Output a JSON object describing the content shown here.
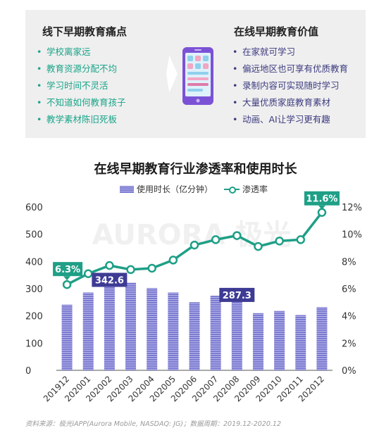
{
  "left_panel": {
    "title": "线下早期教育痛点",
    "items": [
      "学校离家远",
      "教育资源分配不均",
      "学习时间不灵活",
      "不知道如何教育孩子",
      "教学素材陈旧死板"
    ]
  },
  "right_panel": {
    "title": "在线早期教育价值",
    "items": [
      "在家就可学习",
      "偏远地区也可享有优质教育",
      "录制内容可实现随时学习",
      "大量优质家庭教育素材",
      "动画、AI让学习更有趣"
    ]
  },
  "bullet_symbol": "•",
  "watermark": "AURORA 极光",
  "source": "资料来源：极光iAPP(Aurora Mobile, NASDAQ: JG)；数据周期：2019.12-2020.12",
  "colors": {
    "bar": "#7b7ad0",
    "line": "#1e9f86",
    "callout_teal": "#1e9f86",
    "callout_purple": "#3e3b95"
  },
  "chart_data": {
    "type": "bar",
    "title": "在线早期教育行业渗透率和使用时长",
    "categories": [
      "201912",
      "202001",
      "202002",
      "202003",
      "202004",
      "202005",
      "202006",
      "202007",
      "202008",
      "202009",
      "202010",
      "202011",
      "202012"
    ],
    "series": [
      {
        "name": "使用时长（亿分钟）",
        "type": "bar",
        "axis": "left",
        "values": [
          241,
          286,
          342.6,
          322,
          302,
          286,
          250,
          274,
          287.3,
          210,
          218,
          203,
          232
        ]
      },
      {
        "name": "渗透率",
        "type": "line",
        "axis": "right",
        "values": [
          6.3,
          7.1,
          7.7,
          7.4,
          7.5,
          8.1,
          9.2,
          9.6,
          9.9,
          9.1,
          9.5,
          9.6,
          11.6
        ]
      }
    ],
    "ylim_left": [
      0,
      600
    ],
    "yticks_left": [
      "0",
      "100",
      "200",
      "300",
      "400",
      "500",
      "600"
    ],
    "ylim_right": [
      0,
      12
    ],
    "yticks_right": [
      "0%",
      "2%",
      "4%",
      "6%",
      "8%",
      "10%",
      "12%"
    ],
    "callouts": [
      {
        "series": "渗透率",
        "index": 0,
        "label": "6.3%"
      },
      {
        "series": "渗透率",
        "index": 12,
        "label": "11.6%"
      },
      {
        "series": "使用时长（亿分钟）",
        "index": 2,
        "label": "342.6"
      },
      {
        "series": "使用时长（亿分钟）",
        "index": 8,
        "label": "287.3"
      }
    ],
    "legend_position": "top-center",
    "grid": false
  }
}
